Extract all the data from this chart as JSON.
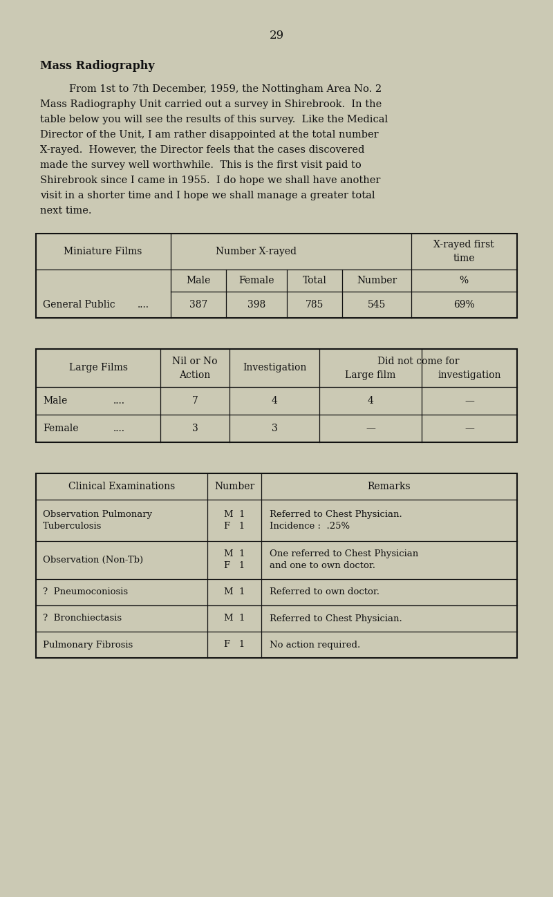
{
  "bg_color": "#cbc9b4",
  "page_bg": "#cbc9b4",
  "page_number": "29",
  "title": "Mass Radiography",
  "para_line1": "From 1st to 7th December, 1959, the Nottingham Area No. 2",
  "para_line2": "Mass Radiography Unit carried out a survey in Shirebrook.  In the",
  "para_line3": "table below you will see the results of this survey.  Like the Medical",
  "para_line4": "Director of the Unit, I am rather disappointed at the total number",
  "para_line5": "X-rayed.  However, the Director feels that the cases discovered",
  "para_line6": "made the survey well worthwhile.  This is the first visit paid to",
  "para_line7": "Shirebrook since I came in 1955.  I do hope we shall have another",
  "para_line8": "visit in a shorter time and I hope we shall manage a greater total",
  "para_line9": "next time.",
  "font_color": "#111111",
  "line_color": "#111111",
  "t1_miniature_films": "Miniature Films",
  "t1_number_xrayed": "Number X-rayed",
  "t1_xrayed_first": "X-rayed first",
  "t1_time": "time",
  "t1_male": "Male",
  "t1_female": "Female",
  "t1_total": "Total",
  "t1_number": "Number",
  "t1_pct": "%",
  "t1_general_public": "General Public",
  "t1_dots": "....",
  "t1_387": "387",
  "t1_398": "398",
  "t1_785": "785",
  "t1_545": "545",
  "t1_69pct": "69%",
  "t2_large_films": "Large Films",
  "t2_nil_or_no": "Nil or No",
  "t2_action": "Action",
  "t2_investigation": "Investigation",
  "t2_did_not": "Did not come for",
  "t2_large_film": "Large film",
  "t2_invest2": "investigation",
  "t2_male": "Male",
  "t2_female": "Female",
  "t2_dots": "....",
  "t3_clinical": "Clinical Examinations",
  "t3_number": "Number",
  "t3_remarks": "Remarks",
  "dash": "—",
  "figsize": [
    8.0,
    12.98
  ],
  "dpi": 100
}
